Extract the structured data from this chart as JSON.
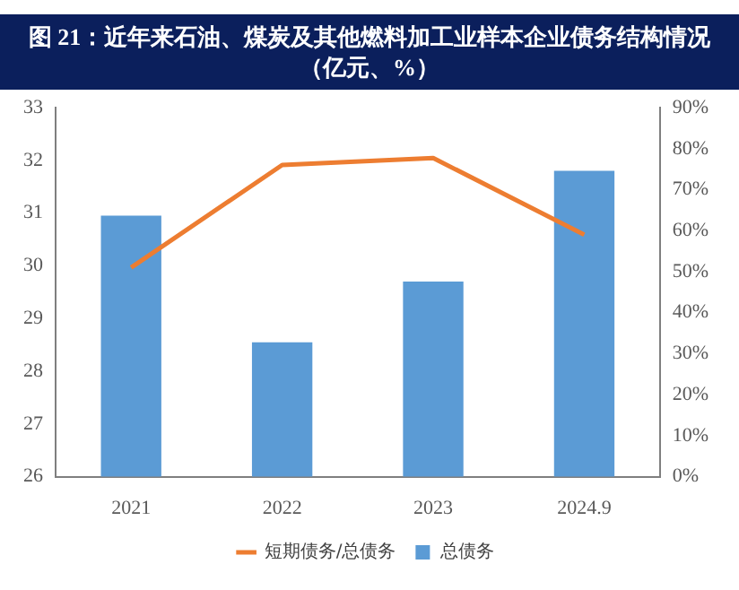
{
  "chart_data": {
    "type": "bar",
    "title": "图 21：近年来石油、煤炭及其他燃料加工业样本企业债务结构情况（亿元、%）",
    "categories": [
      "2021",
      "2022",
      "2023",
      "2024.9"
    ],
    "series": [
      {
        "name": "总债务",
        "color": "#5b9bd5",
        "values": [
          30.95,
          28.55,
          29.7,
          31.8
        ]
      },
      {
        "name": "短期债务/总债务",
        "color": "#ed7d31",
        "type": "line",
        "axis": "y2",
        "values": [
          51,
          76,
          77.7,
          59
        ]
      }
    ],
    "ylim": [
      26,
      33
    ],
    "yticks": [
      26,
      27,
      28,
      29,
      30,
      31,
      32,
      33
    ],
    "y2lim": [
      0,
      90
    ],
    "y2ticks": [
      {
        "value": 0,
        "label": "0%"
      },
      {
        "value": 10,
        "label": "10%"
      },
      {
        "value": 20,
        "label": "20%"
      },
      {
        "value": 30,
        "label": "30%"
      },
      {
        "value": 40,
        "label": "40%"
      },
      {
        "value": 50,
        "label": "50%"
      },
      {
        "value": 60,
        "label": "60%"
      },
      {
        "value": 70,
        "label": "70%"
      },
      {
        "value": 80,
        "label": "80%"
      },
      {
        "value": 90,
        "label": "90%"
      }
    ],
    "legend": "bottom"
  }
}
